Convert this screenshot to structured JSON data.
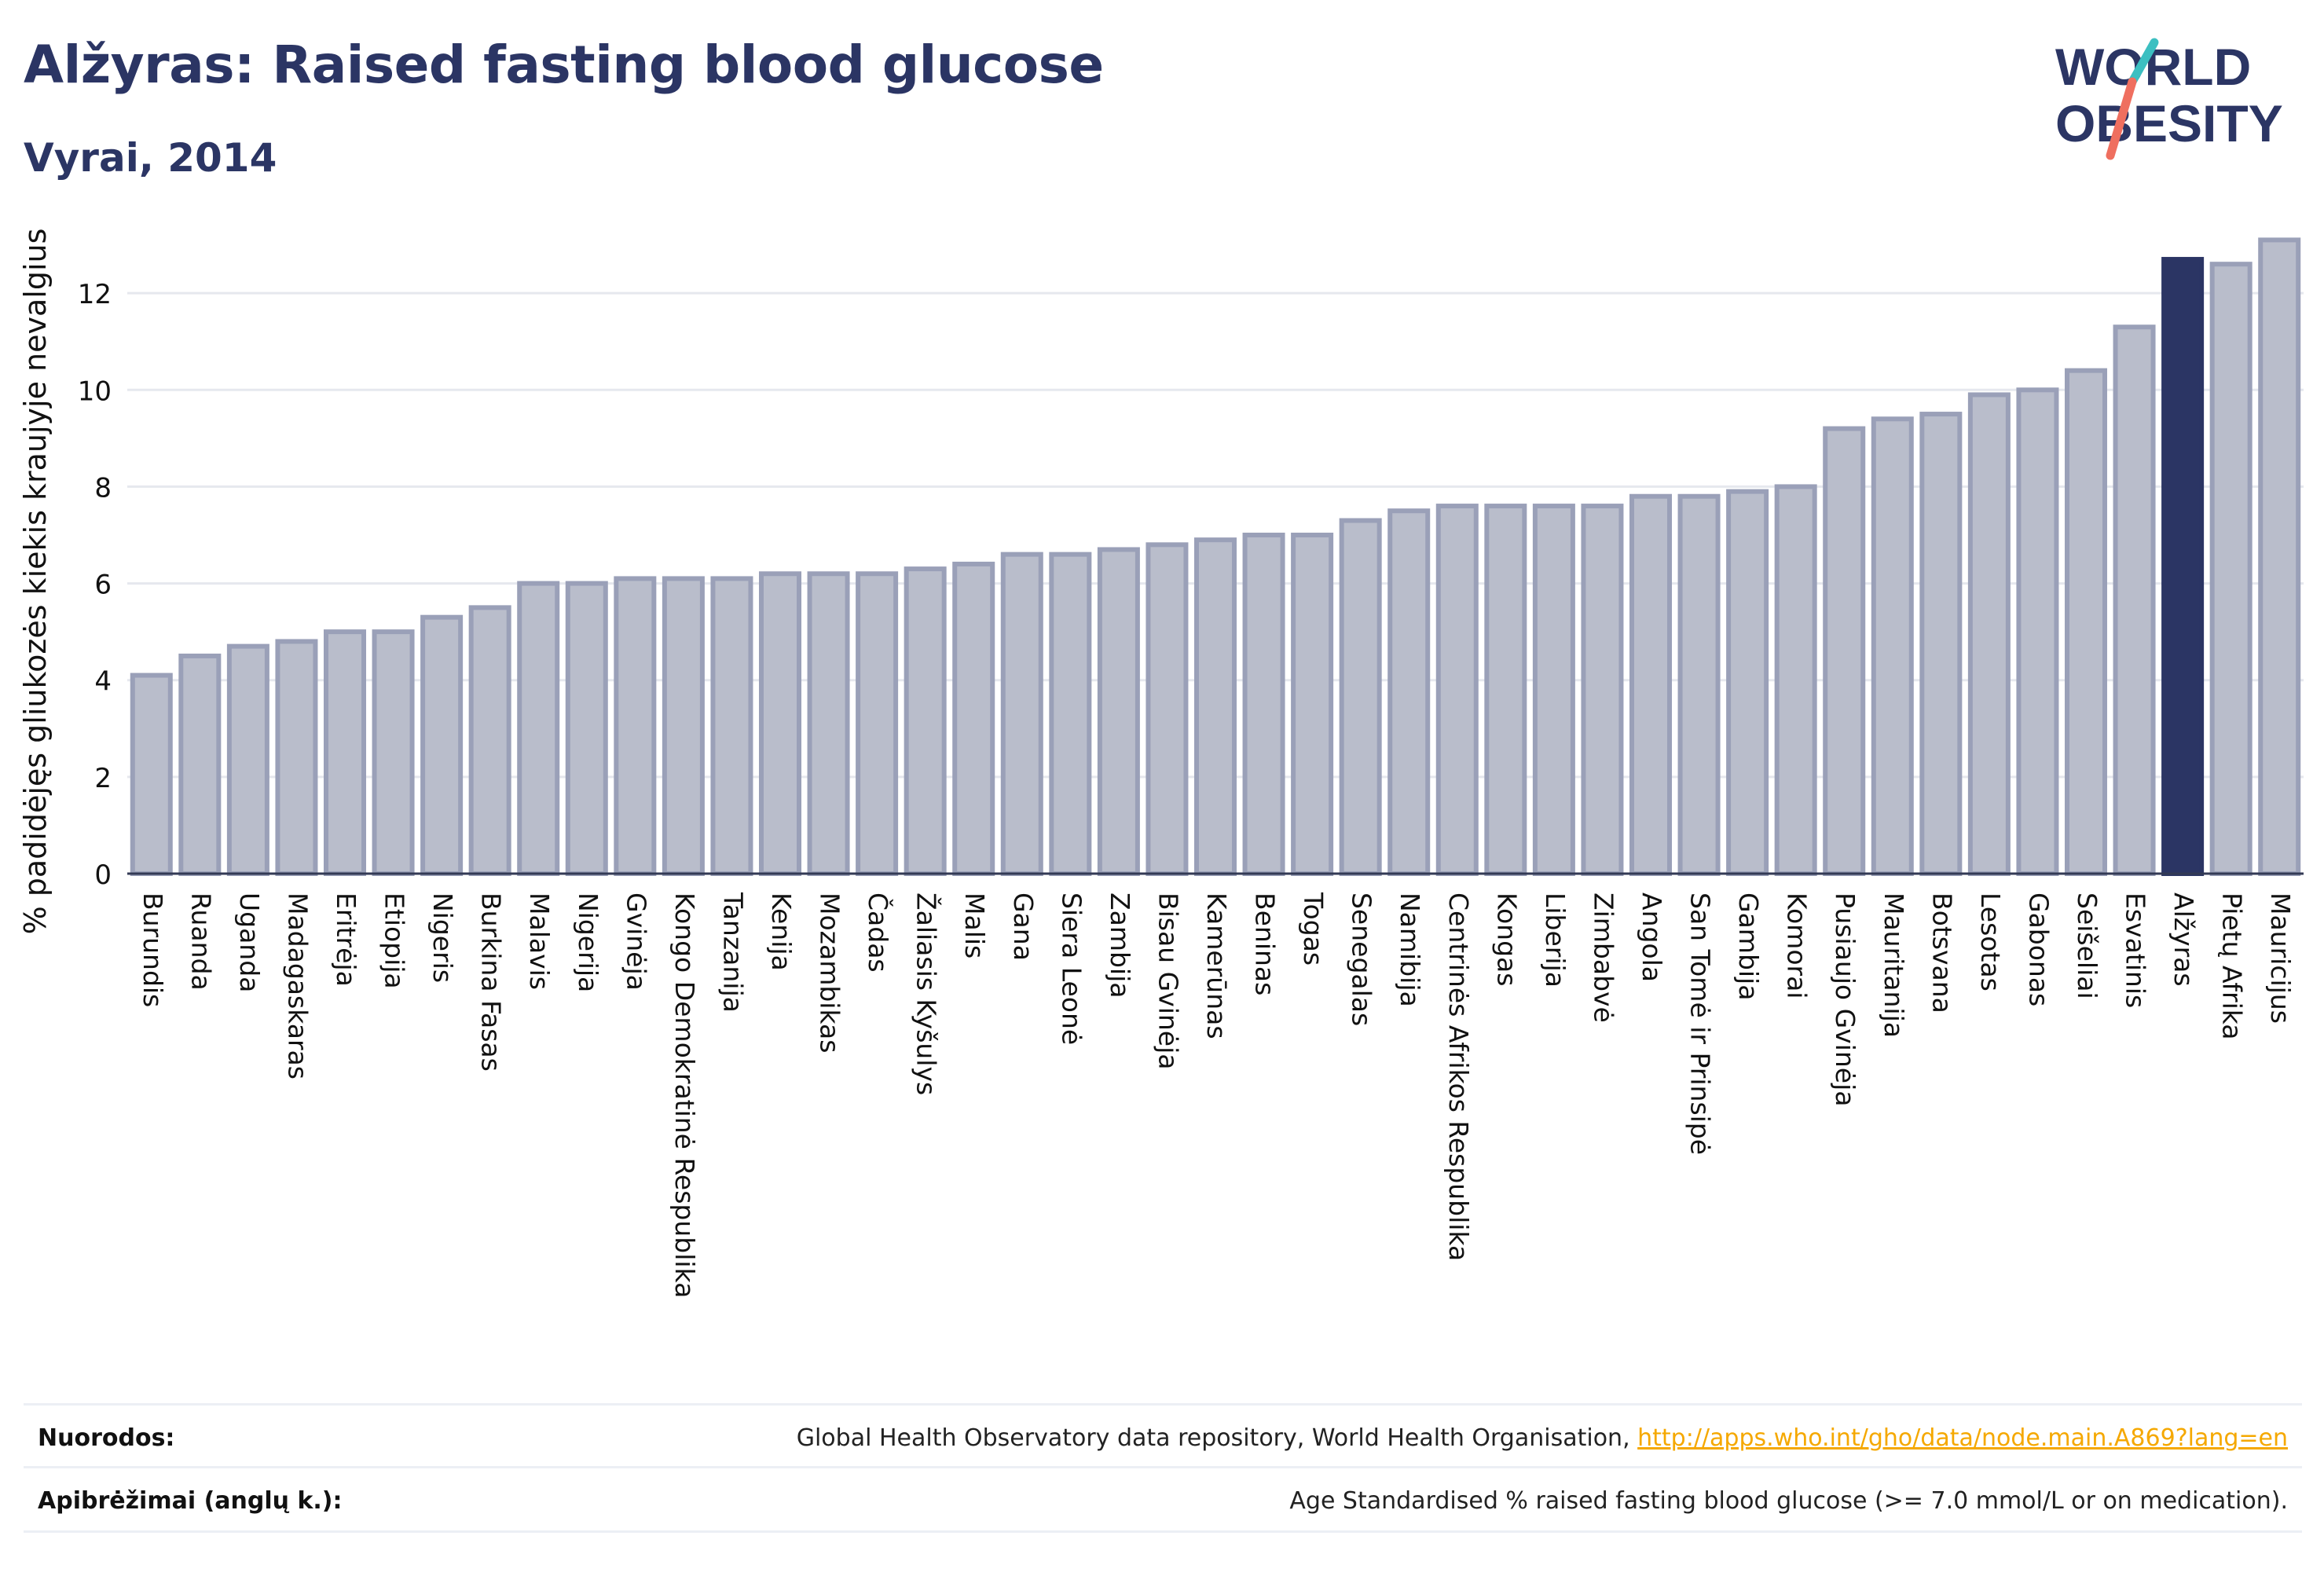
{
  "header": {
    "title": "Alžyras: Raised fasting blood glucose",
    "subtitle": "Vyrai, 2014"
  },
  "logo": {
    "line1": "WORLD",
    "line2": "OBESITY"
  },
  "colors": {
    "bar_fill": "#b9bdcb",
    "bar_stroke": "#9aa0b8",
    "highlight": "#2b3564",
    "title": "#2b3564",
    "grid": "#e6e8ee",
    "link": "#f5a800",
    "logo_teal": "#3cbfc1",
    "logo_coral": "#ef6f5f"
  },
  "chart_data": {
    "type": "bar",
    "ylabel": "% padidėjęs gliukozės kiekis kraujyje nevalgius",
    "xlabel": "",
    "ylim": [
      0,
      14
    ],
    "yticks": [
      0,
      2,
      4,
      6,
      8,
      10,
      12
    ],
    "grid": true,
    "highlight": "Alžyras",
    "categories": [
      "Burundis",
      "Ruanda",
      "Uganda",
      "Madagaskaras",
      "Eritrėja",
      "Etiopija",
      "Nigeris",
      "Burkina Fasas",
      "Malavis",
      "Nigerija",
      "Gvinėja",
      "Kongo Demokratinė Respublika",
      "Tanzanija",
      "Kenija",
      "Mozambikas",
      "Čadas",
      "Žaliasis Kyšulys",
      "Malis",
      "Gana",
      "Siera Leonė",
      "Zambija",
      "Bisau Gvinėja",
      "Kamerūnas",
      "Beninas",
      "Togas",
      "Senegalas",
      "Namibija",
      "Centrinės Afrikos Respublika",
      "Kongas",
      "Liberija",
      "Zimbabvė",
      "Angola",
      "San Tomė ir Prinsipė",
      "Gambija",
      "Komorai",
      "Pusiaujo Gvinėja",
      "Mauritanija",
      "Botsvana",
      "Lesotas",
      "Gabonas",
      "Seišeliai",
      "Esvatinis",
      "Alžyras",
      "Pietų Afrika",
      "Mauricijus"
    ],
    "values": [
      4.1,
      4.5,
      4.7,
      4.8,
      5.0,
      5.0,
      5.3,
      5.5,
      6.0,
      6.0,
      6.1,
      6.1,
      6.1,
      6.2,
      6.2,
      6.2,
      6.3,
      6.4,
      6.6,
      6.6,
      6.7,
      6.8,
      6.9,
      7.0,
      7.0,
      7.3,
      7.5,
      7.6,
      7.6,
      7.6,
      7.6,
      7.8,
      7.8,
      7.9,
      8.0,
      9.2,
      9.4,
      9.5,
      9.9,
      10.0,
      10.4,
      11.3,
      12.7,
      12.6,
      13.1
    ]
  },
  "footer": {
    "sources_label": "Nuorodos:",
    "sources_text": "Global Health Observatory data repository, World Health Organisation, ",
    "sources_link": "http://apps.who.int/gho/data/node.main.A869?lang=en",
    "definitions_label": "Apibrėžimai (anglų k.):",
    "definitions_text": "Age Standardised % raised fasting blood glucose (>= 7.0 mmol/L or on medication)."
  }
}
